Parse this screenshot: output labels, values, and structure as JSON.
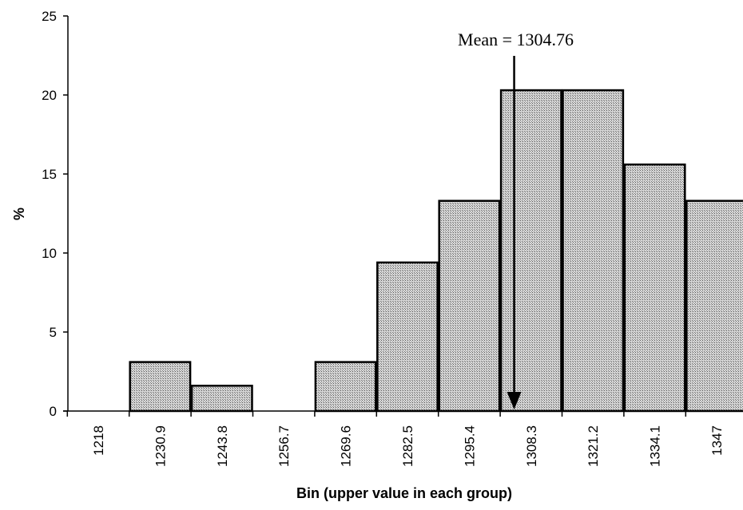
{
  "chart_data": {
    "type": "bar",
    "categories": [
      "1218",
      "1230.9",
      "1243.8",
      "1256.7",
      "1269.6",
      "1282.5",
      "1295.4",
      "1308.3",
      "1321.2",
      "1334.1",
      "1347"
    ],
    "series": [
      {
        "values": [
          0,
          3.1,
          1.6,
          0,
          3.1,
          9.4,
          13.3,
          20.3,
          20.3,
          15.6,
          13.3
        ]
      }
    ],
    "title": "",
    "xlabel": "Bin (upper value in each group)",
    "ylabel": "%",
    "ylim": [
      0,
      25
    ],
    "yticks": [
      0,
      5,
      10,
      15,
      20,
      25
    ],
    "grid": false,
    "legend": "none",
    "annotation": {
      "text": "Mean = 1304.76",
      "x_value": 1304.76
    },
    "bar_fill": "#b4b4b4",
    "bar_stroke": "#000000"
  }
}
